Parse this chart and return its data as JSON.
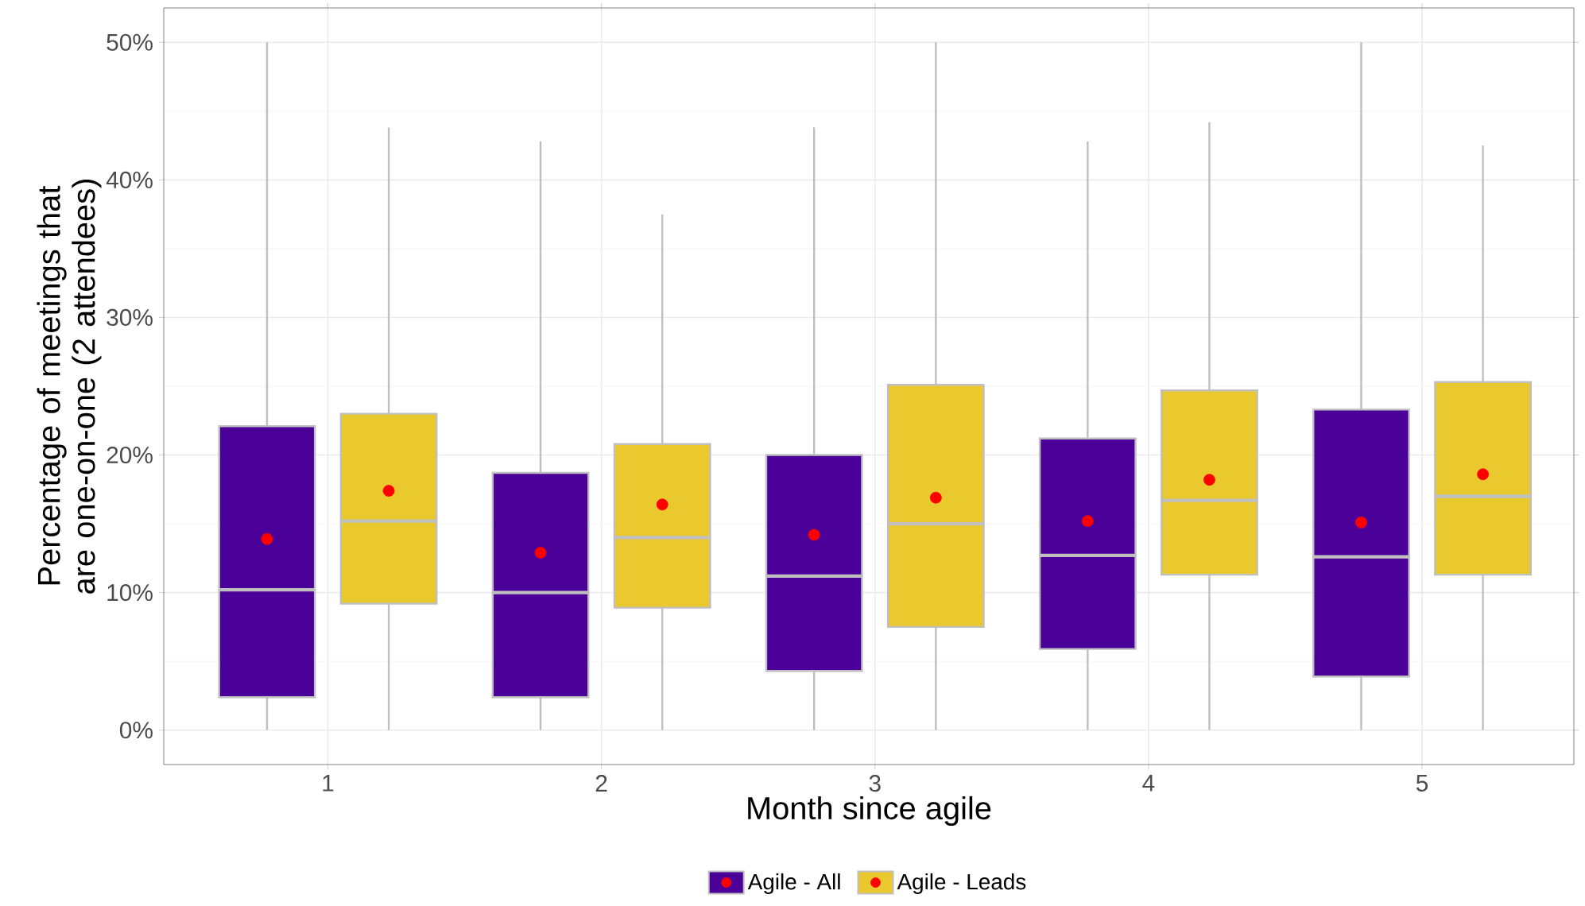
{
  "chart_data": {
    "type": "box",
    "xlabel": "Month since agile",
    "ylabel": "Percentage of meetings that are one-on-one (2 attendees)",
    "categories": [
      "1",
      "2",
      "3",
      "4",
      "5"
    ],
    "ylim": [
      -2.5,
      52.5
    ],
    "yticks": [
      {
        "value": 0,
        "label": "0%"
      },
      {
        "value": 10,
        "label": "10%"
      },
      {
        "value": 20,
        "label": "20%"
      },
      {
        "value": 30,
        "label": "30%"
      },
      {
        "value": 40,
        "label": "40%"
      },
      {
        "value": 50,
        "label": "50%"
      }
    ],
    "grid": true,
    "legend": "bottom",
    "series": [
      {
        "name": "Agile - All",
        "color": "#4b0099",
        "boxes": [
          {
            "low": 0,
            "q1": 2.4,
            "median": 10.2,
            "q3": 22.1,
            "high": 50,
            "mean": 13.9
          },
          {
            "low": 0,
            "q1": 2.4,
            "median": 10.0,
            "q3": 18.7,
            "high": 42.8,
            "mean": 12.9
          },
          {
            "low": 0,
            "q1": 4.3,
            "median": 11.2,
            "q3": 20.0,
            "high": 43.8,
            "mean": 14.2
          },
          {
            "low": 0,
            "q1": 5.9,
            "median": 12.7,
            "q3": 21.2,
            "high": 42.8,
            "mean": 15.2
          },
          {
            "low": 0,
            "q1": 3.9,
            "median": 12.6,
            "q3": 23.3,
            "high": 50,
            "mean": 15.1
          }
        ]
      },
      {
        "name": "Agile - Leads",
        "color": "#e9c92d",
        "boxes": [
          {
            "low": 0,
            "q1": 9.2,
            "median": 15.2,
            "q3": 23.0,
            "high": 43.8,
            "mean": 17.4
          },
          {
            "low": 0,
            "q1": 8.9,
            "median": 14.0,
            "q3": 20.8,
            "high": 37.5,
            "mean": 16.4
          },
          {
            "low": 0,
            "q1": 7.5,
            "median": 15.0,
            "q3": 25.1,
            "high": 50,
            "mean": 16.9
          },
          {
            "low": 0,
            "q1": 11.3,
            "median": 16.7,
            "q3": 24.7,
            "high": 44.2,
            "mean": 18.2
          },
          {
            "low": 0,
            "q1": 11.3,
            "median": 17.0,
            "q3": 25.3,
            "high": 42.5,
            "mean": 18.6
          }
        ]
      }
    ]
  }
}
